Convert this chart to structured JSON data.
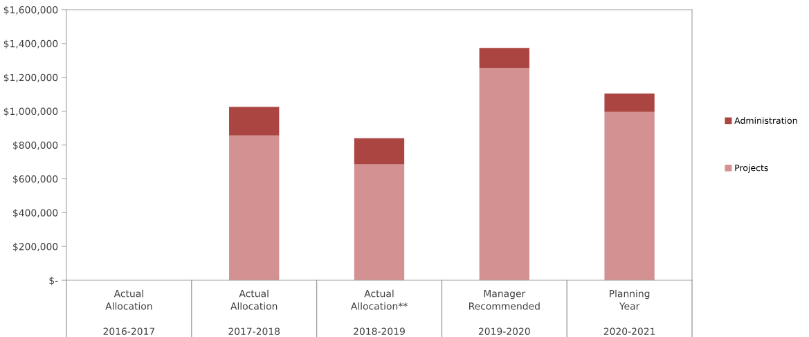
{
  "chart_data": {
    "type": "bar",
    "stacked": true,
    "categories": [
      "Actual\nAllocation\n\n2016-2017",
      "Actual\nAllocation\n\n2017-2018",
      "Actual\nAllocation**\n\n2018-2019",
      "Manager\nRecommended\n\n2019-2020",
      "Planning\nYear\n\n2020-2021"
    ],
    "series": [
      {
        "name": "Projects",
        "color": "#d39191",
        "values": [
          null,
          856000,
          685000,
          1256000,
          995000
        ]
      },
      {
        "name": "Administration",
        "color": "#ab4542",
        "values": [
          null,
          169000,
          155000,
          118000,
          109000
        ]
      }
    ],
    "ylim": [
      0,
      1600000
    ],
    "yticks": [
      {
        "value": 0,
        "label": "$-"
      },
      {
        "value": 200000,
        "label": "$200,000"
      },
      {
        "value": 400000,
        "label": "$400,000"
      },
      {
        "value": 600000,
        "label": "$600,000"
      },
      {
        "value": 800000,
        "label": "$800,000"
      },
      {
        "value": 1000000,
        "label": "$1,000,000"
      },
      {
        "value": 1200000,
        "label": "$1,200,000"
      },
      {
        "value": 1400000,
        "label": "$1,400,000"
      },
      {
        "value": 1600000,
        "label": "$1,600,000"
      }
    ],
    "grid": false,
    "legend": "right"
  }
}
